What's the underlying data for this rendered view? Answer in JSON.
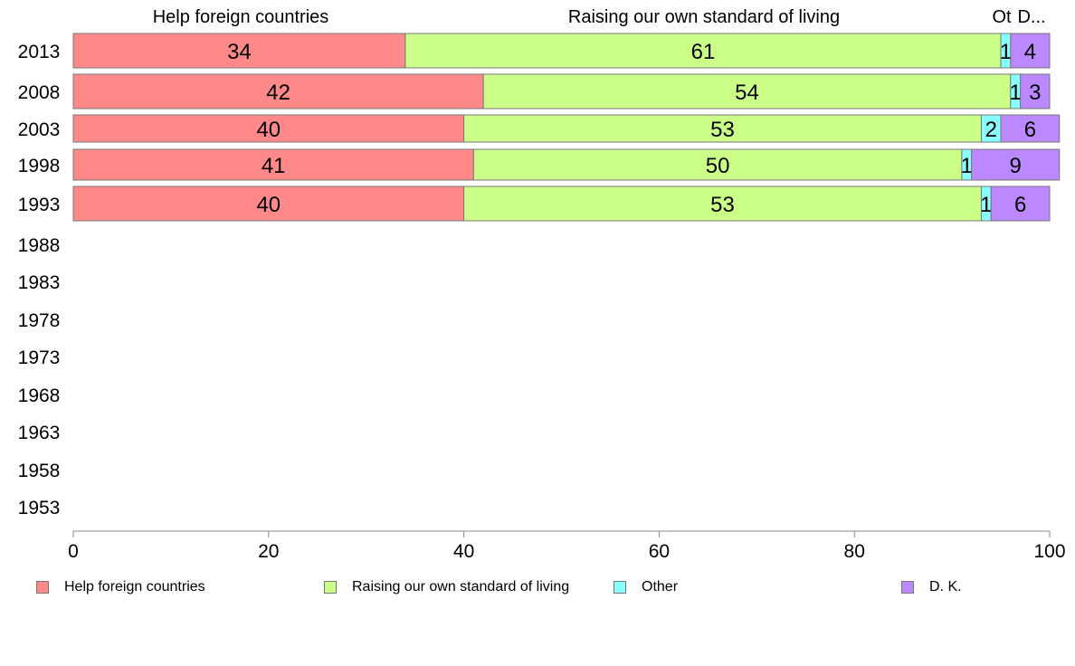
{
  "chart_data": {
    "type": "bar",
    "orientation": "horizontal",
    "stacked": true,
    "categories": [
      "2013",
      "2008",
      "2003",
      "1998",
      "1993",
      "1988",
      "1983",
      "1978",
      "1973",
      "1968",
      "1963",
      "1958",
      "1953"
    ],
    "series": [
      {
        "name": "Help foreign countries",
        "color": "#ff8888",
        "values": [
          34,
          42,
          40,
          41,
          40,
          null,
          null,
          null,
          null,
          null,
          null,
          null,
          null
        ]
      },
      {
        "name": "Raising our own standard of living",
        "color": "#ccff88",
        "values": [
          61,
          54,
          53,
          50,
          53,
          null,
          null,
          null,
          null,
          null,
          null,
          null,
          null
        ]
      },
      {
        "name": "Other",
        "color": "#88ffff",
        "values": [
          1,
          1,
          2,
          1,
          1,
          null,
          null,
          null,
          null,
          null,
          null,
          null,
          null
        ]
      },
      {
        "name": "D. K.",
        "color": "#bb88ff",
        "values": [
          4,
          3,
          6,
          9,
          6,
          null,
          null,
          null,
          null,
          null,
          null,
          null,
          null
        ]
      }
    ],
    "column_headers": [
      "Help foreign countries",
      "Raising our own standard of living",
      "Ot",
      "D..."
    ],
    "xlim": [
      0,
      100
    ],
    "x_ticks": [
      "0",
      "20",
      "40",
      "60",
      "80",
      "100"
    ],
    "grid": false,
    "legend_position": "bottom"
  }
}
